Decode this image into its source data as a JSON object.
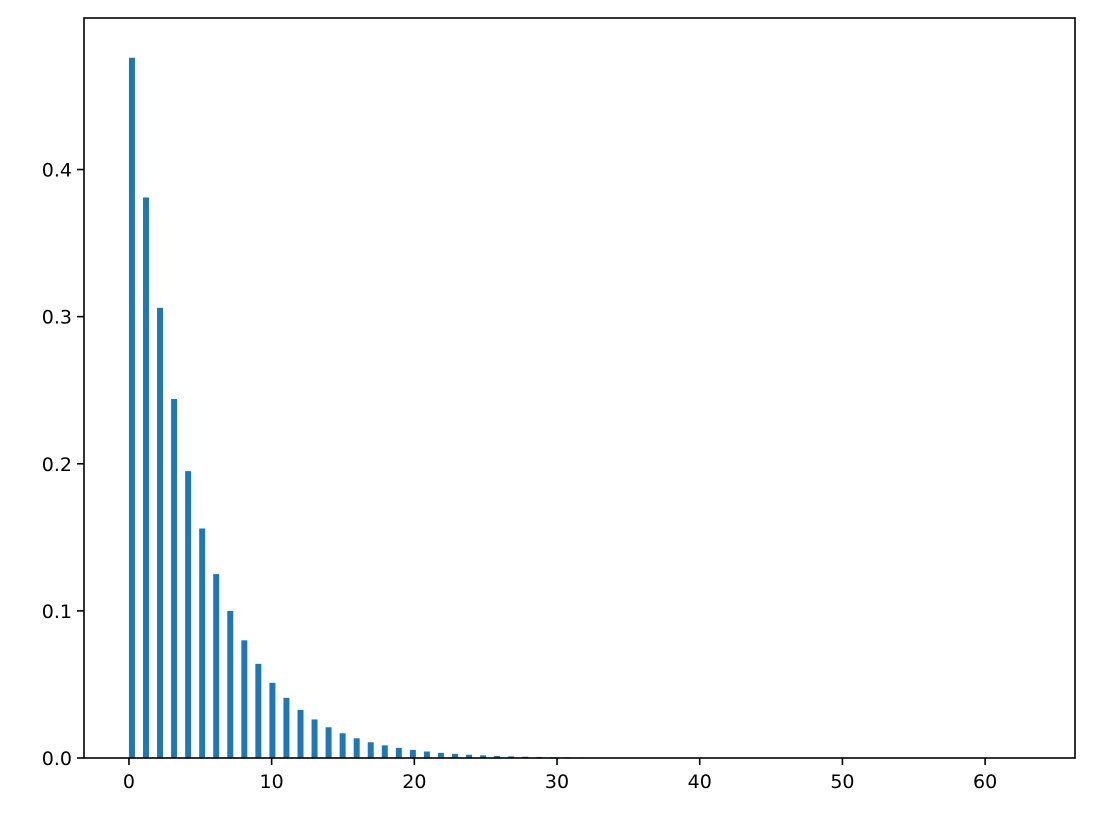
{
  "chart_data": {
    "type": "bar",
    "title": "",
    "xlabel": "",
    "ylabel": "",
    "xlim": [
      -3.15,
      66.3
    ],
    "ylim": [
      0,
      0.503
    ],
    "xticks": [
      0,
      10,
      20,
      30,
      40,
      50,
      60
    ],
    "xtick_labels": [
      "0",
      "10",
      "20",
      "30",
      "40",
      "50",
      "60"
    ],
    "yticks": [
      0.0,
      0.1,
      0.2,
      0.3,
      0.4
    ],
    "ytick_labels": [
      "0.0",
      "0.1",
      "0.2",
      "0.3",
      "0.4"
    ],
    "grid": false,
    "bar_color": "#1f77b4",
    "bin_width": 0.984,
    "bar_width": 0.42,
    "x": [
      0,
      0.984,
      1.969,
      2.953,
      3.938,
      4.922,
      5.906,
      6.891,
      7.875,
      8.859,
      9.844,
      10.828,
      11.813,
      12.797,
      13.781,
      14.766,
      15.75,
      16.734,
      17.719,
      18.703,
      19.688,
      20.672,
      21.656,
      22.641,
      23.625,
      24.609,
      25.594,
      26.578,
      27.563,
      28.547,
      29.531,
      30.516,
      31.5,
      32.484,
      33.469,
      34.453,
      35.438,
      36.422,
      37.406,
      38.391,
      39.375,
      40.359,
      41.344,
      42.328,
      43.313,
      44.297,
      45.281,
      46.266,
      47.25,
      48.234,
      49.219,
      50.203,
      51.188,
      52.172,
      53.156,
      54.141,
      55.125,
      56.109,
      57.094,
      58.078,
      59.063,
      60.047,
      61.031,
      62.016
    ],
    "values": [
      0.476,
      0.381,
      0.306,
      0.244,
      0.195,
      0.156,
      0.125,
      0.1,
      0.08,
      0.064,
      0.0511,
      0.0409,
      0.0327,
      0.0262,
      0.0209,
      0.0168,
      0.0134,
      0.0107,
      0.0086,
      0.0069,
      0.0055,
      0.0044,
      0.0035,
      0.0028,
      0.0022,
      0.0018,
      0.0014,
      0.0011,
      0.0009,
      0.0007,
      0.0006,
      0.0005,
      0.0004,
      0.0003,
      0.00024,
      0.00019,
      0.00015,
      0.00012,
      0.0001,
      8e-05,
      6e-05,
      5e-05,
      4e-05,
      3e-05,
      3e-05,
      2e-05,
      2e-05,
      1e-05,
      1e-05,
      1e-05,
      1e-05,
      0,
      0,
      0,
      0,
      0,
      0,
      0,
      0,
      0,
      0,
      0,
      0,
      1e-05
    ]
  }
}
